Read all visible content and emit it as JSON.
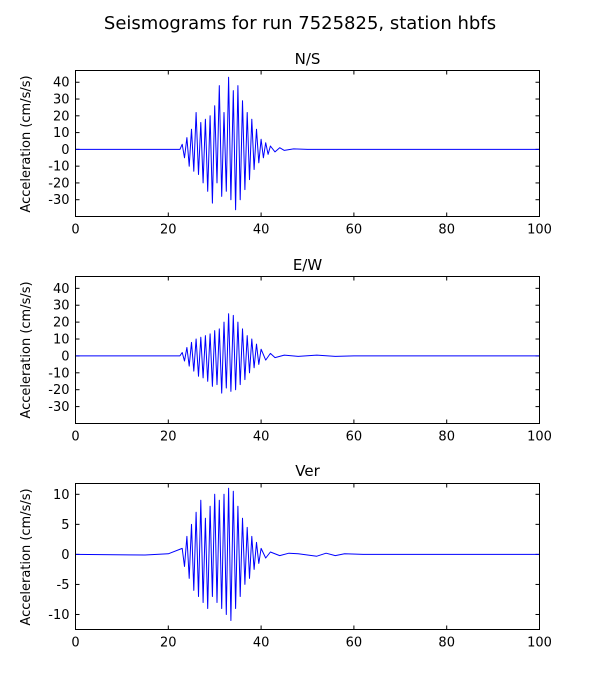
{
  "chart_data": {
    "type": "line",
    "suptitle": "Seismograms for run 7525825, station hbfs",
    "color": "#0000ff",
    "panels": [
      {
        "title": "N/S",
        "ylabel": "Acceleration (cm/s/s)",
        "xlim": [
          0,
          100
        ],
        "ylim": [
          -40,
          47
        ],
        "xticks": [
          0,
          20,
          40,
          60,
          80,
          100
        ],
        "yticks": [
          -30,
          -20,
          -10,
          0,
          10,
          20,
          30,
          40
        ],
        "x": [
          0,
          22.5,
          23.0,
          23.5,
          24.0,
          24.5,
          25.0,
          25.5,
          26.0,
          26.5,
          27.0,
          27.5,
          28.0,
          28.5,
          29.0,
          29.5,
          30.0,
          30.5,
          31.0,
          31.5,
          32.0,
          32.5,
          33.0,
          33.5,
          34.0,
          34.5,
          35.0,
          35.5,
          36.0,
          36.5,
          37.0,
          37.5,
          38.0,
          38.5,
          39.0,
          39.5,
          40.0,
          40.5,
          41.0,
          41.5,
          42.0,
          43.0,
          44.0,
          45.0,
          47.0,
          50.0,
          55.0,
          100
        ],
        "y": [
          0,
          0,
          3,
          -5,
          7,
          -10,
          12,
          -13,
          22,
          -15,
          16,
          -20,
          18,
          -25,
          20,
          -32,
          26,
          -20,
          38,
          -28,
          22,
          -25,
          43,
          -30,
          35,
          -36,
          38,
          -30,
          29,
          -24,
          22,
          -18,
          18,
          -12,
          12,
          -8,
          6,
          -5,
          4,
          -3,
          2,
          -1.5,
          1,
          -0.6,
          0.3,
          0,
          0,
          0
        ]
      },
      {
        "title": "E/W",
        "ylabel": "Acceleration (cm/s/s)",
        "xlim": [
          0,
          100
        ],
        "ylim": [
          -40,
          47
        ],
        "xticks": [
          0,
          20,
          40,
          60,
          80,
          100
        ],
        "yticks": [
          -30,
          -20,
          -10,
          0,
          10,
          20,
          30,
          40
        ],
        "x": [
          0,
          22.5,
          23.0,
          23.5,
          24.0,
          24.5,
          25.0,
          25.5,
          26.0,
          26.5,
          27.0,
          27.5,
          28.0,
          28.5,
          29.0,
          29.5,
          30.0,
          30.5,
          31.0,
          31.5,
          32.0,
          32.5,
          33.0,
          33.5,
          34.0,
          34.5,
          35.0,
          35.5,
          36.0,
          36.5,
          37.0,
          37.5,
          38.0,
          38.5,
          39.0,
          39.5,
          40.0,
          41.0,
          42.0,
          43.0,
          45.0,
          48.0,
          52.0,
          56.0,
          60.0,
          100
        ],
        "y": [
          0,
          0,
          2,
          -3,
          5,
          -6,
          8,
          -9,
          10,
          -12,
          11,
          -13,
          12,
          -15,
          13,
          -18,
          15,
          -17,
          16,
          -22,
          20,
          -19,
          25,
          -21,
          24,
          -20,
          20,
          -17,
          16,
          -14,
          12,
          -10,
          10,
          -7,
          7,
          -5,
          4,
          -2.5,
          1.5,
          -1,
          0.5,
          -0.3,
          0.5,
          -0.3,
          0,
          0
        ]
      },
      {
        "title": "Ver",
        "ylabel": "Acceleration (cm/s/s)",
        "xlim": [
          0,
          100
        ],
        "ylim": [
          -12.5,
          11.8
        ],
        "xticks": [
          0,
          20,
          40,
          60,
          80,
          100
        ],
        "yticks": [
          -10,
          -5,
          0,
          5,
          10
        ],
        "x": [
          0,
          15.0,
          20.0,
          23.0,
          23.5,
          24.0,
          24.5,
          25.0,
          25.5,
          26.0,
          26.5,
          27.0,
          27.5,
          28.0,
          28.5,
          29.0,
          29.5,
          30.0,
          30.5,
          31.0,
          31.5,
          32.0,
          32.5,
          33.0,
          33.5,
          34.0,
          34.5,
          35.0,
          35.5,
          36.0,
          36.5,
          37.0,
          37.5,
          38.0,
          38.5,
          39.0,
          39.5,
          40.0,
          41.0,
          42.0,
          44.0,
          46.0,
          48.0,
          50.0,
          52.0,
          54.0,
          56.0,
          58.0,
          62.0,
          66.0,
          100
        ],
        "y": [
          0,
          -0.1,
          0.1,
          1,
          -2,
          3,
          -4,
          5,
          -6,
          7,
          -7,
          9,
          -8,
          6,
          -9,
          8,
          -7,
          10,
          -8,
          9,
          -9,
          10,
          -10,
          11,
          -11,
          10.5,
          -9,
          8,
          -7,
          6,
          -5,
          4.5,
          -4,
          3,
          -2.5,
          2,
          -1.5,
          1,
          -0.6,
          0.4,
          -0.2,
          0.2,
          0.1,
          -0.1,
          -0.3,
          0.2,
          -0.2,
          0.1,
          0,
          0,
          0
        ]
      }
    ]
  }
}
